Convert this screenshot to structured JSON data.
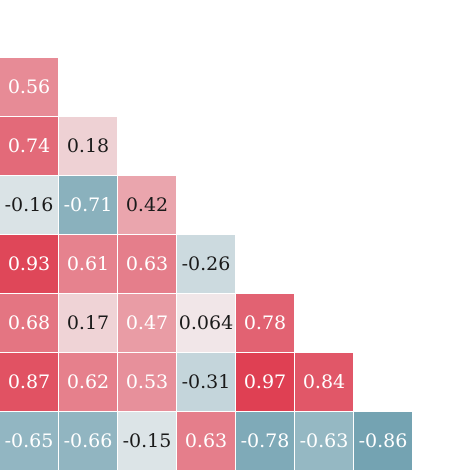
{
  "chart_data": {
    "type": "heatmap",
    "title": "",
    "xlabel": "",
    "ylabel": "",
    "layout": "lower-triangle",
    "value_range": [
      -1,
      1
    ],
    "colormap": {
      "negative": "#5f96a8",
      "neutral": "#f2f2f2",
      "positive": "#de3a4e"
    },
    "rows": [
      {
        "values": [
          0.56
        ],
        "labels": [
          "0.56"
        ]
      },
      {
        "values": [
          0.74,
          0.18
        ],
        "labels": [
          "0.74",
          "0.18"
        ]
      },
      {
        "values": [
          -0.16,
          -0.71,
          0.42
        ],
        "labels": [
          "-0.16",
          "-0.71",
          "0.42"
        ]
      },
      {
        "values": [
          0.93,
          0.61,
          0.63,
          -0.26
        ],
        "labels": [
          "0.93",
          "0.61",
          "0.63",
          "-0.26"
        ]
      },
      {
        "values": [
          0.68,
          0.17,
          0.47,
          0.064,
          0.78
        ],
        "labels": [
          "0.68",
          "0.17",
          "0.47",
          "0.064",
          "0.78"
        ]
      },
      {
        "values": [
          0.87,
          0.62,
          0.53,
          -0.31,
          0.97,
          0.84
        ],
        "labels": [
          "0.87",
          "0.62",
          "0.53",
          "-0.31",
          "0.97",
          "0.84"
        ]
      },
      {
        "values": [
          -0.65,
          -0.66,
          -0.15,
          0.63,
          -0.78,
          -0.63,
          -0.86
        ],
        "labels": [
          "-0.65",
          "-0.66",
          "-0.15",
          "0.63",
          "-0.78",
          "-0.63",
          "-0.86"
        ]
      }
    ]
  }
}
